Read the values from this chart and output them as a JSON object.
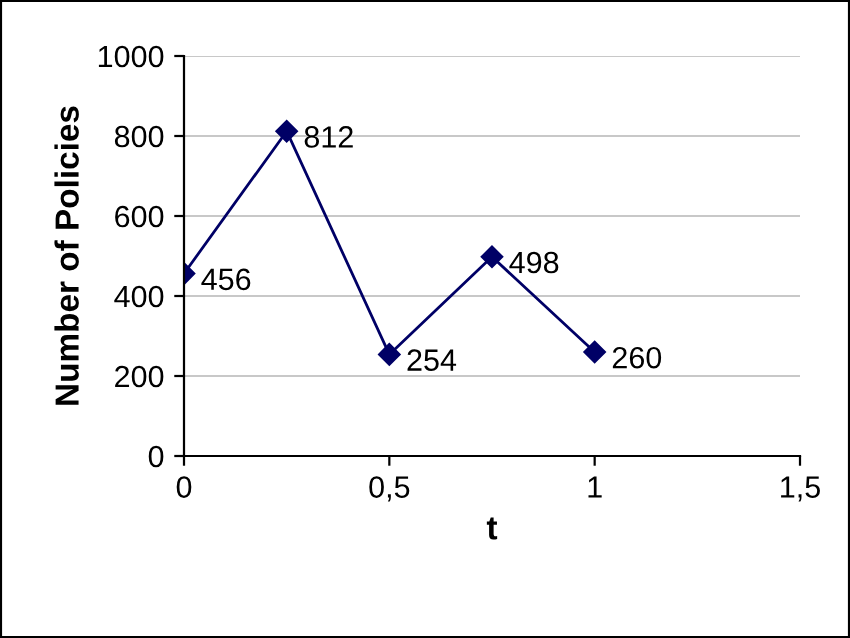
{
  "chart_data": {
    "type": "line",
    "xlabel": "t",
    "ylabel": "Number of Policies",
    "x": [
      0,
      0.25,
      0.5,
      0.75,
      1
    ],
    "series": [
      {
        "color": "#000066",
        "values": [
          456,
          812,
          254,
          498,
          260
        ]
      }
    ],
    "xlim": [
      0,
      1.5
    ],
    "xticks": [
      0,
      {
        "value": 0.5,
        "label": "0,5"
      },
      1,
      {
        "value": 1.5,
        "label": "1,5"
      }
    ],
    "ylim": [
      0,
      1000
    ],
    "yticks": [
      0,
      200,
      400,
      600,
      800,
      1000
    ],
    "grid": "y",
    "marker": "diamond",
    "line_style": "solid",
    "data_labels": true,
    "legend": false
  }
}
